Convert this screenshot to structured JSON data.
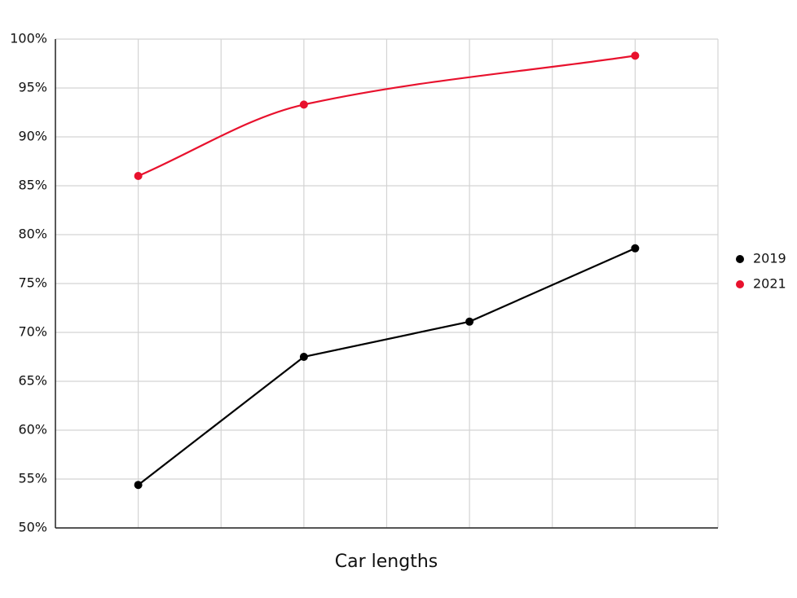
{
  "chart_data": {
    "type": "line",
    "x_label": "Car lengths",
    "categories": [
      null,
      null,
      null,
      null
    ],
    "series": [
      {
        "name": "2019",
        "color": "#000000",
        "values": [
          54.4,
          67.5,
          71.1,
          78.6
        ]
      },
      {
        "name": "2021",
        "color": "#e8112d",
        "values": [
          86,
          93.3,
          null,
          98.3
        ],
        "smooth": true,
        "span_gaps": true
      }
    ],
    "ylim": [
      50,
      100
    ],
    "yticks": [
      {
        "value": 50,
        "label": "50%"
      },
      {
        "value": 55,
        "label": "55%"
      },
      {
        "value": 60,
        "label": "60%"
      },
      {
        "value": 65,
        "label": "65%"
      },
      {
        "value": 70,
        "label": "70%"
      },
      {
        "value": 75,
        "label": "75%"
      },
      {
        "value": 80,
        "label": "80%"
      },
      {
        "value": 85,
        "label": "85%"
      },
      {
        "value": 90,
        "label": "90%"
      },
      {
        "value": 95,
        "label": "95%"
      },
      {
        "value": 100,
        "label": "100%"
      }
    ],
    "grid": true,
    "legend": "right"
  }
}
